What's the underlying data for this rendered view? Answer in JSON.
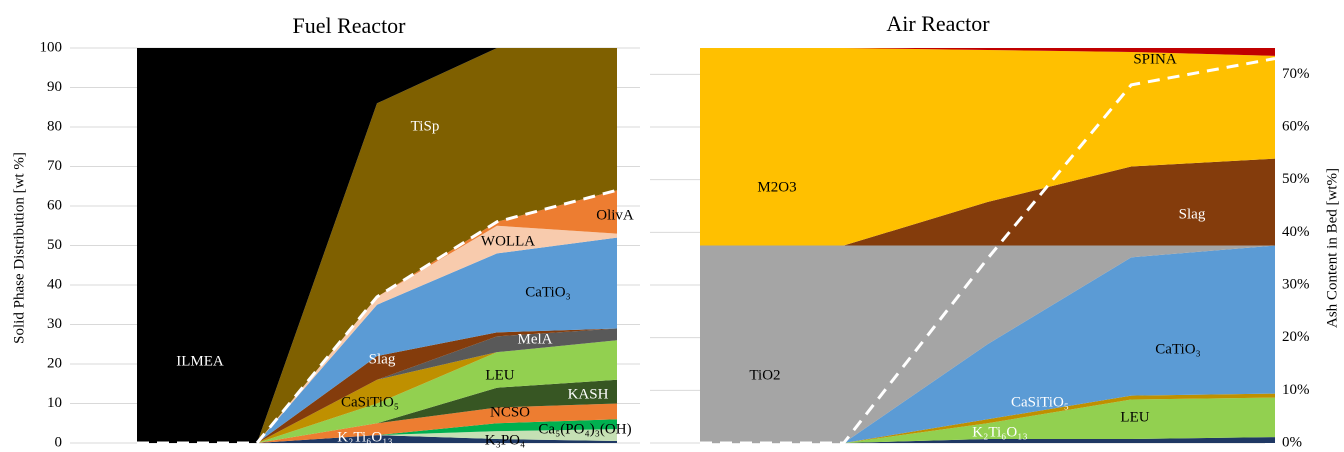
{
  "chart_data": [
    {
      "type": "area",
      "title": "Fuel Reactor",
      "y_label": "Solid Phase Distribution [wt %]",
      "categories": [
        null,
        null,
        null,
        null,
        null
      ],
      "ylim": [
        0,
        100
      ],
      "yticks": [
        0,
        10,
        20,
        30,
        40,
        50,
        60,
        70,
        80,
        90,
        100
      ],
      "grid": true,
      "series": [
        {
          "name": "K₂Ti₆O₁₃",
          "color": "#1f3864",
          "values": [
            0,
            0,
            2,
            1,
            0.5
          ]
        },
        {
          "name": "K₃PO₄",
          "color": "#c5e0b4",
          "values": [
            0,
            0,
            0,
            2,
            3
          ]
        },
        {
          "name": "Ca₅(PO₄)₃(OH)",
          "color": "#00b050",
          "values": [
            0,
            0,
            0,
            2,
            2.5
          ]
        },
        {
          "name": "NCSO",
          "color": "#ed7d31",
          "values": [
            0,
            0,
            3,
            4,
            4
          ]
        },
        {
          "name": "KASH",
          "color": "#375623",
          "values": [
            0,
            0,
            0,
            5,
            6
          ]
        },
        {
          "name": "LEU",
          "color": "#92d050",
          "values": [
            0,
            0,
            5,
            9,
            10
          ]
        },
        {
          "name": "CaSiTiO₅",
          "color": "#bf9000",
          "values": [
            0,
            0,
            6,
            0,
            0
          ]
        },
        {
          "name": "MelA",
          "color": "#595959",
          "values": [
            0,
            0,
            0,
            4,
            3
          ]
        },
        {
          "name": "Slag",
          "color": "#843c0c",
          "values": [
            0,
            0,
            6,
            1,
            0
          ]
        },
        {
          "name": "CaTiO₃",
          "color": "#5b9bd5",
          "values": [
            0,
            0,
            13,
            20,
            23
          ]
        },
        {
          "name": "WOLLA",
          "color": "#f8cbad",
          "values": [
            0,
            0,
            2,
            7,
            1
          ]
        },
        {
          "name": "OlivA",
          "color": "#ed7d31",
          "values": [
            0,
            0,
            0,
            1,
            11
          ]
        },
        {
          "name": "TiSp",
          "color": "#7f6000",
          "values": [
            0,
            0,
            49,
            44,
            36
          ]
        },
        {
          "name": "ILMEA",
          "color": "#000000",
          "values": [
            100,
            100,
            14,
            0,
            0
          ]
        }
      ],
      "line": {
        "color": "#ffffff",
        "values": [
          0,
          0,
          37,
          56,
          64
        ]
      }
    },
    {
      "type": "area",
      "title": "Air Reactor",
      "y2_label": "Ash Content in Bed [wt%]",
      "categories": [
        null,
        null,
        null,
        null,
        null
      ],
      "ylim": [
        0,
        100
      ],
      "y2lim": [
        0,
        75
      ],
      "y2ticks": [
        {
          "value": 0,
          "label": "0%"
        },
        {
          "value": 10,
          "label": "10%"
        },
        {
          "value": 20,
          "label": "20%"
        },
        {
          "value": 30,
          "label": "30%"
        },
        {
          "value": 40,
          "label": "40%"
        },
        {
          "value": 50,
          "label": "50%"
        },
        {
          "value": 60,
          "label": "60%"
        },
        {
          "value": 70,
          "label": "70%"
        }
      ],
      "grid": true,
      "series": [
        {
          "name": "K₂Ti₆O₁₃",
          "color": "#1f3864",
          "values": [
            0,
            0,
            1,
            1,
            1.5
          ]
        },
        {
          "name": "LEU",
          "color": "#92d050",
          "values": [
            0,
            0,
            4,
            10,
            10
          ]
        },
        {
          "name": "CaSiTiO₅",
          "color": "#bf9000",
          "values": [
            0,
            0,
            1,
            1,
            1
          ]
        },
        {
          "name": "CaTiO₃",
          "color": "#5b9bd5",
          "values": [
            0,
            0,
            19,
            35,
            37.5
          ]
        },
        {
          "name": "TiO2",
          "color": "#a5a5a5",
          "values": [
            50,
            50,
            25,
            3,
            0
          ]
        },
        {
          "name": "Slag",
          "color": "#843c0c",
          "values": [
            0,
            0,
            11,
            20,
            22
          ]
        },
        {
          "name": "M2O3",
          "color": "#ffc000",
          "values": [
            50,
            50,
            38.5,
            29,
            26
          ]
        },
        {
          "name": "SPINA",
          "color": "#c00000",
          "values": [
            0,
            0,
            0.5,
            1,
            2
          ]
        }
      ],
      "line": {
        "color": "#ffffff",
        "axis": "y2",
        "values": [
          0,
          0,
          35,
          68,
          73
        ]
      }
    }
  ]
}
